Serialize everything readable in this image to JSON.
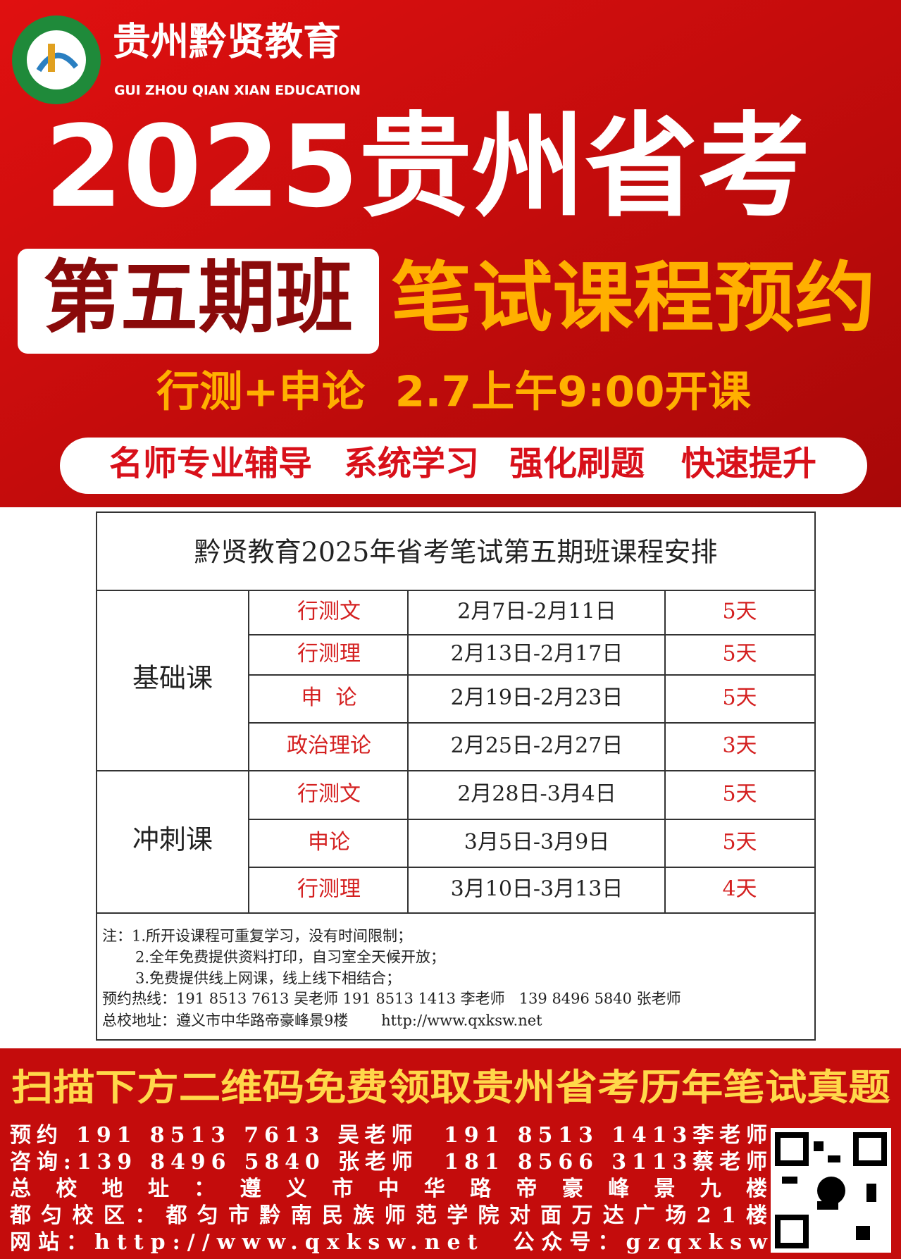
{
  "header": {
    "brand": "贵州黔贤教育",
    "brand_en": "GUI ZHOU QIAN XIAN EDUCATION",
    "title": "2025贵州省考",
    "badge": "第五期班",
    "headline": "笔试课程预约",
    "subline": "行测+申论  2.7上午9:00开课",
    "features": [
      "名师专业辅导",
      "系统学习",
      "强化刷题",
      "快速提升"
    ]
  },
  "table": {
    "title": "黔贤教育2025年省考笔试第五期班课程安排",
    "groups": [
      {
        "name": "基础课",
        "rows": [
          [
            "行测文",
            "2月7日-2月11日",
            "5天"
          ],
          [
            "行测理",
            "2月13日-2月17日",
            "5天"
          ],
          [
            "申  论",
            "2月19日-2月23日",
            "5天"
          ],
          [
            "政治理论",
            "2月25日-2月27日",
            "3天"
          ]
        ]
      },
      {
        "name": "冲刺课",
        "rows": [
          [
            "行测文",
            "2月28日-3月4日",
            "5天"
          ],
          [
            "申论",
            "3月5日-3月9日",
            "5天"
          ],
          [
            "行测理",
            "3月10日-3月13日",
            "4天"
          ]
        ]
      }
    ],
    "notes": [
      "注：1.所开设课程可重复学习，没有时间限制；",
      "2.全年免费提供资料打印，自习室全天候开放；",
      "3.免费提供线上网课，线上线下相结合；",
      "预约热线：191 8513 7613 吴老师 191 8513 1413 李老师   139 8496 5840 张老师",
      "总校地址：遵义市中华路帝豪峰景9楼       http://www.qxksw.net"
    ]
  },
  "footer": {
    "banner": "扫描下方二维码免费领取贵州省考历年笔试真题",
    "lines": [
      "预约 191 8513 7613 吴老师  191 8513 1413李老师",
      "咨询:139 8496 5840 张老师  181 8566 3113蔡老师",
      "总校地址：遵义市中华路帝豪峰景九楼",
      "都匀校区：都匀市黔南民族师范学院对面万达广场21楼",
      "网站：http://www.qxksw.net  公众号：gzqxksw"
    ]
  }
}
